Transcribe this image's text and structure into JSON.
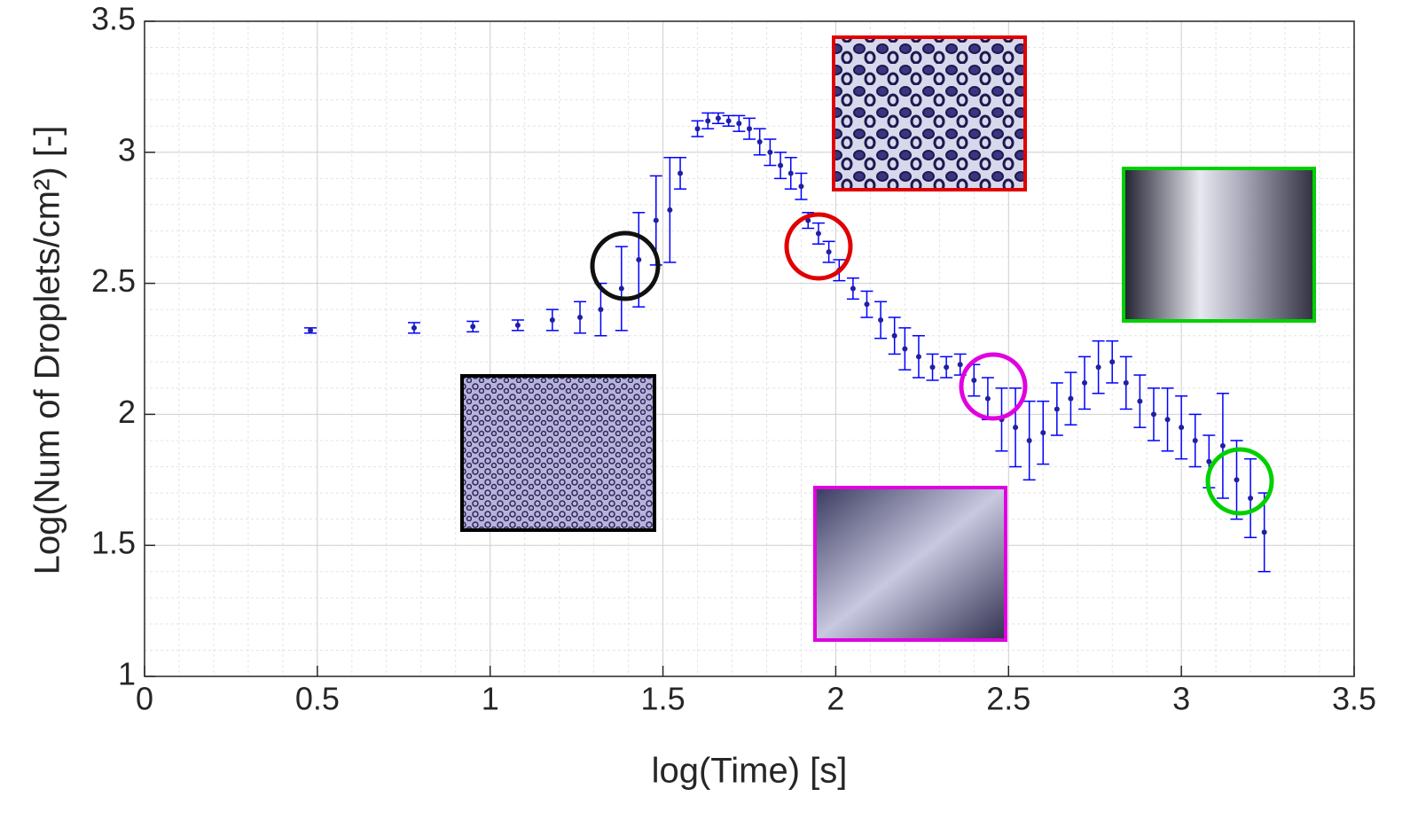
{
  "chart_data": {
    "type": "errorbar",
    "xlabel": "log(Time) [s]",
    "ylabel": "Log(Num of Droplets/cm²) [-]",
    "x": [
      0.48,
      0.78,
      0.95,
      1.08,
      1.18,
      1.26,
      1.32,
      1.38,
      1.43,
      1.48,
      1.52,
      1.55,
      1.6,
      1.63,
      1.66,
      1.69,
      1.72,
      1.75,
      1.78,
      1.81,
      1.84,
      1.87,
      1.9,
      1.92,
      1.95,
      1.98,
      2.01,
      2.05,
      2.09,
      2.13,
      2.17,
      2.2,
      2.24,
      2.28,
      2.32,
      2.36,
      2.4,
      2.44,
      2.48,
      2.52,
      2.56,
      2.6,
      2.64,
      2.68,
      2.72,
      2.76,
      2.8,
      2.84,
      2.88,
      2.92,
      2.96,
      3.0,
      3.04,
      3.08,
      3.12,
      3.16,
      3.2,
      3.24
    ],
    "series": [
      {
        "color": "#0000ff",
        "values": [
          2.32,
          2.33,
          2.335,
          2.34,
          2.36,
          2.37,
          2.4,
          2.48,
          2.59,
          2.74,
          2.78,
          2.92,
          3.09,
          3.12,
          3.13,
          3.12,
          3.11,
          3.09,
          3.04,
          3.0,
          2.95,
          2.92,
          2.87,
          2.74,
          2.69,
          2.62,
          2.55,
          2.48,
          2.42,
          2.36,
          2.3,
          2.25,
          2.22,
          2.18,
          2.18,
          2.19,
          2.13,
          2.06,
          1.98,
          1.95,
          1.9,
          1.93,
          2.02,
          2.06,
          2.12,
          2.18,
          2.2,
          2.12,
          2.05,
          2.0,
          1.98,
          1.95,
          1.9,
          1.82,
          1.88,
          1.75,
          1.68,
          1.55
        ],
        "errors": [
          0.01,
          0.02,
          0.02,
          0.02,
          0.04,
          0.06,
          0.1,
          0.16,
          0.18,
          0.17,
          0.2,
          0.06,
          0.03,
          0.03,
          0.02,
          0.02,
          0.03,
          0.04,
          0.05,
          0.05,
          0.05,
          0.06,
          0.05,
          0.03,
          0.04,
          0.04,
          0.04,
          0.04,
          0.05,
          0.07,
          0.07,
          0.08,
          0.08,
          0.05,
          0.04,
          0.04,
          0.06,
          0.08,
          0.12,
          0.15,
          0.15,
          0.12,
          0.1,
          0.1,
          0.1,
          0.1,
          0.08,
          0.1,
          0.1,
          0.1,
          0.12,
          0.12,
          0.1,
          0.1,
          0.2,
          0.15,
          0.15,
          0.15
        ]
      }
    ],
    "xlim": [
      0,
      3.5
    ],
    "xticks": [
      0,
      0.5,
      1,
      1.5,
      2,
      2.5,
      3,
      3.5
    ],
    "ylim": [
      1,
      3.5
    ],
    "yticks": [
      1,
      1.5,
      2,
      2.5,
      3,
      3.5
    ],
    "grid": true,
    "minor_grid": 0.1
  }
}
